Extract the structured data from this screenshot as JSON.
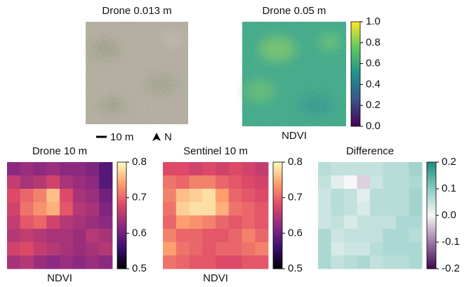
{
  "chart_data": [
    {
      "type": "image",
      "title": "Drone 0.013 m",
      "scale_bar": "10 m",
      "north": "N"
    },
    {
      "type": "image",
      "title": "Drone 0.05 m",
      "colormap": "viridis",
      "colorbar_label": "NDVI",
      "clim": [
        0,
        1
      ],
      "cticks": [
        {
          "value": 0,
          "label": "0.0"
        },
        0.2,
        0.4,
        0.6,
        0.8,
        {
          "value": 1,
          "label": "1.0"
        }
      ]
    },
    {
      "type": "heatmap",
      "title": "Drone 10 m",
      "colormap": "magma",
      "colorbar_label": "NDVI",
      "clim": [
        0.5,
        0.8
      ],
      "cticks": [
        0.5,
        0.6,
        0.7,
        0.8
      ],
      "values": [
        [
          0.62,
          0.63,
          0.62,
          0.63,
          0.62,
          0.62,
          0.61,
          0.58
        ],
        [
          0.66,
          0.64,
          0.65,
          0.67,
          0.64,
          0.63,
          0.62,
          0.58
        ],
        [
          0.68,
          0.7,
          0.72,
          0.76,
          0.68,
          0.64,
          0.63,
          0.6
        ],
        [
          0.67,
          0.71,
          0.73,
          0.75,
          0.69,
          0.65,
          0.64,
          0.61
        ],
        [
          0.66,
          0.69,
          0.7,
          0.67,
          0.65,
          0.64,
          0.63,
          0.62
        ],
        [
          0.65,
          0.66,
          0.65,
          0.64,
          0.64,
          0.63,
          0.65,
          0.64
        ],
        [
          0.67,
          0.68,
          0.66,
          0.65,
          0.64,
          0.63,
          0.64,
          0.65
        ],
        [
          0.64,
          0.65,
          0.63,
          0.62,
          0.63,
          0.62,
          0.63,
          0.62
        ]
      ]
    },
    {
      "type": "heatmap",
      "title": "Sentinel 10 m",
      "colormap": "magma",
      "colorbar_label": "NDVI",
      "clim": [
        0.5,
        0.8
      ],
      "cticks": [
        0.5,
        0.6,
        0.7,
        0.8
      ],
      "values": [
        [
          0.68,
          0.68,
          0.67,
          0.68,
          0.67,
          0.68,
          0.67,
          0.66
        ],
        [
          0.71,
          0.7,
          0.72,
          0.72,
          0.7,
          0.69,
          0.68,
          0.67
        ],
        [
          0.72,
          0.76,
          0.77,
          0.78,
          0.74,
          0.7,
          0.69,
          0.68
        ],
        [
          0.71,
          0.77,
          0.78,
          0.78,
          0.75,
          0.71,
          0.7,
          0.69
        ],
        [
          0.7,
          0.74,
          0.73,
          0.72,
          0.7,
          0.69,
          0.7,
          0.69
        ],
        [
          0.72,
          0.7,
          0.7,
          0.69,
          0.69,
          0.7,
          0.72,
          0.7
        ],
        [
          0.74,
          0.71,
          0.7,
          0.69,
          0.7,
          0.7,
          0.71,
          0.72
        ],
        [
          0.71,
          0.7,
          0.69,
          0.69,
          0.68,
          0.68,
          0.69,
          0.69
        ]
      ]
    },
    {
      "type": "heatmap",
      "title": "Difference",
      "colormap": "diverging",
      "clim": [
        -0.2,
        0.2
      ],
      "cticks": [
        -0.2,
        -0.1,
        {
          "value": 0,
          "label": "0.0"
        },
        0.1,
        0.2
      ],
      "values": [
        [
          0.06,
          0.05,
          0.05,
          0.05,
          0.05,
          0.06,
          0.06,
          0.08
        ],
        [
          0.05,
          0.02,
          0.0,
          -0.03,
          0.04,
          0.06,
          0.06,
          0.07
        ],
        [
          0.04,
          0.06,
          0.05,
          0.02,
          0.06,
          0.06,
          0.06,
          0.08
        ],
        [
          0.04,
          0.06,
          0.05,
          0.03,
          0.06,
          0.06,
          0.06,
          0.08
        ],
        [
          0.04,
          0.05,
          0.03,
          0.05,
          0.05,
          0.05,
          0.07,
          0.07
        ],
        [
          0.07,
          0.04,
          0.05,
          0.05,
          0.05,
          0.07,
          0.07,
          0.06
        ],
        [
          0.07,
          0.03,
          0.04,
          0.04,
          0.06,
          0.07,
          0.07,
          0.07
        ],
        [
          0.07,
          0.05,
          0.06,
          0.07,
          0.05,
          0.06,
          0.06,
          0.07
        ]
      ]
    }
  ]
}
